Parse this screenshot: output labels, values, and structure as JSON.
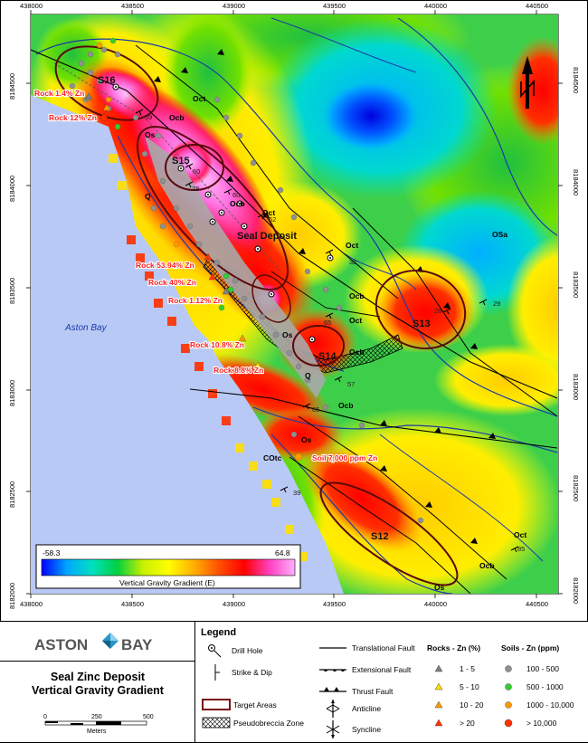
{
  "map": {
    "x_ticks": [
      "438000",
      "438500",
      "439000",
      "439500",
      "440000",
      "440500"
    ],
    "y_ticks": [
      "8184500",
      "8184000",
      "8183500",
      "8183000",
      "8182500",
      "8182000"
    ],
    "targets": [
      "S16",
      "S15",
      "S14",
      "S13",
      "S12"
    ],
    "deposit_label": "Seal Deposit",
    "bay_label": "Aston Bay",
    "geology": [
      "Oct",
      "Ocb",
      "Os",
      "Q",
      "OSa",
      "COtc"
    ],
    "dips": [
      "59",
      "60",
      "78",
      "60",
      "62",
      "32",
      "29",
      "28",
      "65",
      "57",
      "65",
      "39",
      "85"
    ],
    "samples": [
      "Rock 1.4% Zn",
      "Rock 12% Zn",
      "Rock 53.94% Zn",
      "Rock 40% Zn",
      "Rock 1.12% Zn",
      "Rock 10.8% Zn",
      "Rock 8.8% Zn",
      "Soil 7,000 ppm Zn"
    ],
    "north_label": "N"
  },
  "colorbar": {
    "min": "-58.3",
    "max": "64.8",
    "label": "Vertical Gravity Gradient (E)",
    "stops": [
      "#0000ff",
      "#00a6ff",
      "#00e0c0",
      "#00d040",
      "#c8f000",
      "#ffff00",
      "#ffb000",
      "#ff5000",
      "#ff0000",
      "#ff40c0",
      "#ffb0ff"
    ]
  },
  "brand": {
    "logo_left": "ASTON",
    "logo_right": "BAY",
    "logo_color": "#2a95c8"
  },
  "title": {
    "line1": "Seal Zinc Deposit",
    "line2": "Vertical Gravity Gradient"
  },
  "scale": {
    "ticks": [
      "0",
      "250",
      "500"
    ],
    "unit": "Meters"
  },
  "legend": {
    "title": "Legend",
    "symbols": [
      "Drill Hole",
      "Strike & Dip",
      "Target Areas",
      "Pseudobreccia Zone"
    ],
    "faults": [
      "Translational Fault",
      "Extensional Fault",
      "Thrust Fault",
      "Anticline",
      "Syncline"
    ],
    "rocks_title": "Rocks - Zn (%)",
    "rocks": [
      {
        "label": "1 - 5",
        "color": "#808080"
      },
      {
        "label": "5 - 10",
        "color": "#ffdd00"
      },
      {
        "label": "10 - 20",
        "color": "#ff9900"
      },
      {
        "label": "> 20",
        "color": "#ff3300"
      }
    ],
    "soils_title": "Soils - Zn (ppm)",
    "soils": [
      {
        "label": "100 - 500",
        "color": "#909090"
      },
      {
        "label": "500 - 1000",
        "color": "#33cc33"
      },
      {
        "label": "1000 - 10,000",
        "color": "#ff9900"
      },
      {
        "label": "> 10,000",
        "color": "#ff3300"
      }
    ]
  }
}
